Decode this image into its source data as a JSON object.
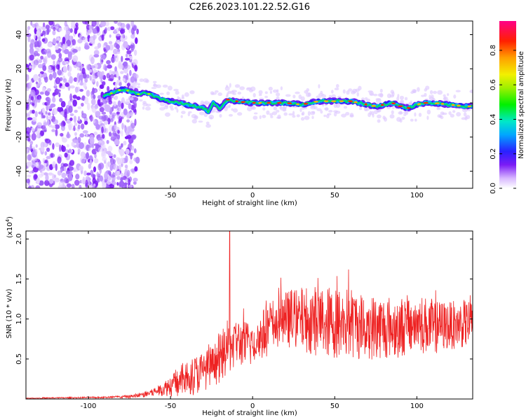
{
  "title": "C2E6.2023.101.22.52.G16",
  "chart_data": [
    {
      "type": "heatmap",
      "name": "spectrogram",
      "xlabel": "Height of straight line (km)",
      "ylabel": "Frequency (Hz)",
      "xlim": [
        -138,
        134
      ],
      "ylim": [
        -50,
        48
      ],
      "xticks": [
        -100,
        -50,
        0,
        50,
        100
      ],
      "yticks": [
        -40,
        -20,
        0,
        20,
        40
      ],
      "ridge": {
        "description_points_height_km": [
          -91,
          -85,
          -80,
          -75,
          -70,
          -65,
          -60,
          -55,
          -50,
          -45,
          -40,
          -35,
          -30,
          -27,
          -24,
          -20,
          -15,
          -10,
          0,
          10,
          20,
          30,
          40,
          50,
          60,
          70,
          75,
          80,
          85,
          90,
          95,
          100,
          105,
          110,
          120,
          130,
          134
        ],
        "frequency_hz": [
          4,
          6,
          8,
          7,
          5,
          6,
          4,
          2,
          1,
          0,
          -1,
          -2,
          -3,
          -5,
          0,
          -3,
          2,
          1,
          0,
          0,
          0,
          -1,
          1,
          1,
          1,
          -1,
          -2,
          -1,
          0,
          -2,
          -3,
          -1,
          0,
          0,
          -1,
          -2,
          -2
        ]
      },
      "colorbar": {
        "label": "Normalized spectral amplitude",
        "ticks": [
          "0.0",
          "0.2",
          "0.4",
          "0.6",
          "0.8"
        ],
        "range": [
          0,
          0.97
        ]
      }
    },
    {
      "type": "line",
      "name": "snr",
      "xlabel": "Height of straight line (km)",
      "ylabel": "SNR (10 * v/v)",
      "scale_base": "10",
      "scale_exp": "4",
      "xlim": [
        -138,
        134
      ],
      "ylim": [
        0,
        2.1
      ],
      "xticks": [
        -100,
        -50,
        0,
        50,
        100
      ],
      "yticks": [
        "0.5",
        "1.0",
        "1.5",
        "2.0"
      ],
      "color": "#ee2222",
      "envelope": {
        "x": [
          -138,
          -90,
          -75,
          -65,
          -55,
          -45,
          -35,
          -25,
          -20,
          -15,
          -10,
          -5,
          0,
          5,
          10,
          15,
          20,
          30,
          40,
          50,
          60,
          70,
          80,
          90,
          100,
          110,
          120,
          134
        ],
        "mean": [
          0.01,
          0.02,
          0.03,
          0.06,
          0.12,
          0.22,
          0.3,
          0.4,
          0.5,
          0.65,
          0.72,
          0.68,
          0.7,
          0.78,
          0.9,
          0.95,
          1.0,
          1.0,
          0.98,
          0.95,
          0.95,
          0.9,
          0.9,
          0.9,
          0.95,
          0.9,
          0.92,
          0.95
        ],
        "amplitude": [
          0.005,
          0.01,
          0.02,
          0.04,
          0.08,
          0.2,
          0.25,
          0.25,
          0.3,
          0.35,
          0.3,
          0.3,
          0.3,
          0.3,
          0.35,
          0.35,
          0.35,
          0.4,
          0.45,
          0.45,
          0.45,
          0.42,
          0.4,
          0.38,
          0.38,
          0.35,
          0.3,
          0.3
        ]
      },
      "spike": {
        "x": -14,
        "value": 2.1
      }
    }
  ]
}
